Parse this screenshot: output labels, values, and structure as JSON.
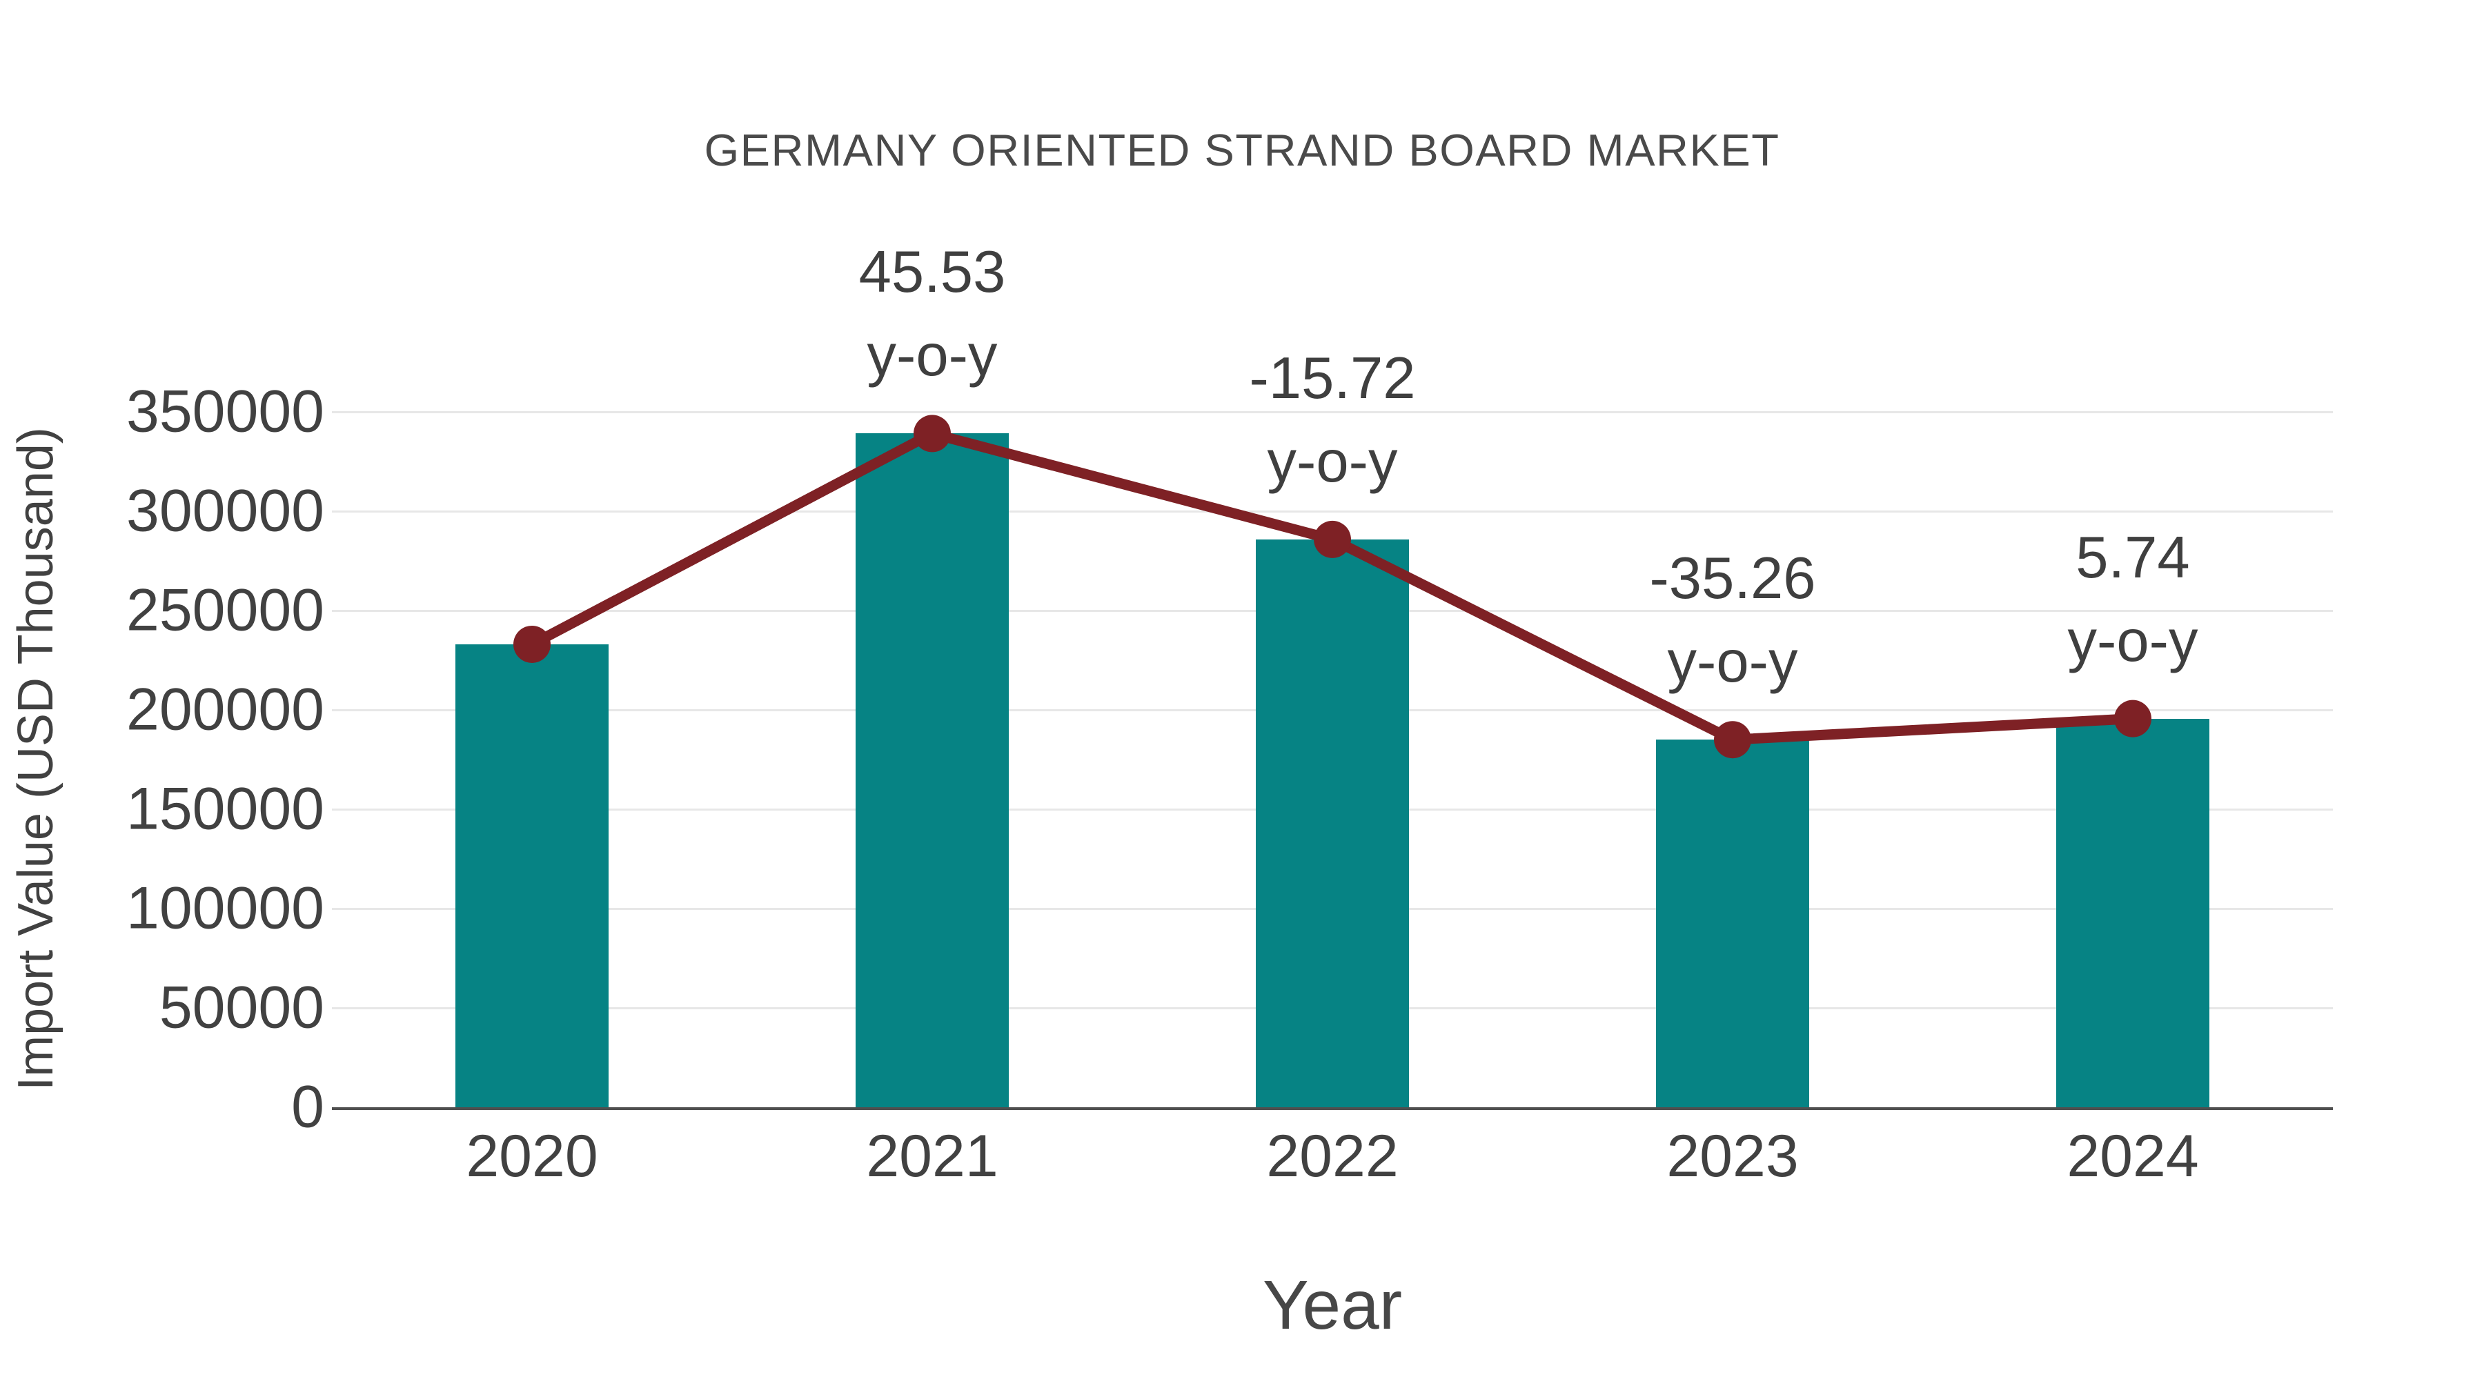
{
  "title": "GERMANY ORIENTED STRAND BOARD MARKET",
  "chart_data": {
    "type": "bar",
    "title": "GERMANY ORIENTED STRAND BOARD MARKET",
    "xlabel": "Year",
    "ylabel": "Import Value (USD Thousand)",
    "categories": [
      "2020",
      "2021",
      "2022",
      "2023",
      "2024"
    ],
    "values": [
      233000,
      339100,
      285800,
      185000,
      195600
    ],
    "series": [
      {
        "name": "Import Value (USD Thousand)",
        "type": "bar",
        "values": [
          233000,
          339100,
          285800,
          185000,
          195600
        ]
      },
      {
        "name": "Import Value trend line",
        "type": "line",
        "follows": "bar_tops",
        "values": [
          233000,
          339100,
          285800,
          185000,
          195600
        ]
      }
    ],
    "yoy_annotations": [
      null,
      "45.53",
      "-15.72",
      "-35.26",
      "5.74"
    ],
    "yoy_suffix": "y-o-y",
    "ylim": [
      0,
      350000
    ],
    "yticks": [
      0,
      50000,
      100000,
      150000,
      200000,
      250000,
      300000,
      350000
    ],
    "grid": "horizontal",
    "legend": "none",
    "colors": {
      "bar": "#068384",
      "line": "#7e2125",
      "marker": "#7e2125",
      "gridline": "#e7e7e7",
      "axis_line": "#4f4f4f",
      "text": "#414141",
      "title_text": "#4a4a4a"
    }
  }
}
